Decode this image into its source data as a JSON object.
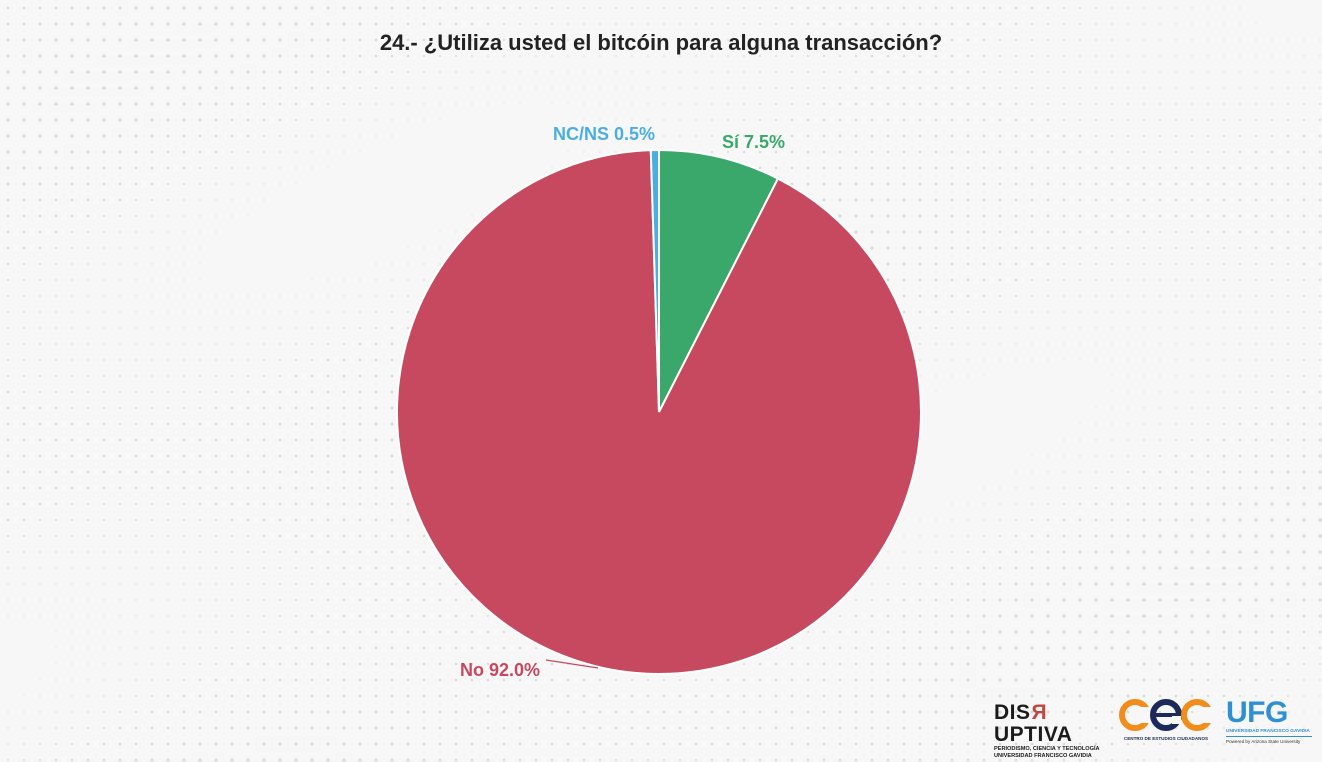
{
  "chart_data": {
    "type": "pie",
    "title": "24.- ¿Utiliza usted el bitcóin para alguna transacción?",
    "slices": [
      {
        "label": "Sí",
        "value": 7.5,
        "display": "Sí 7.5%",
        "color": "#3aa86b"
      },
      {
        "label": "No",
        "value": 92.0,
        "display": "No 92.0%",
        "color": "#c7495f"
      },
      {
        "label": "NC/NS",
        "value": 0.5,
        "display": "NC/NS 0.5%",
        "color": "#4aaee0"
      }
    ],
    "start_angle": "12 o'clock",
    "direction": "clockwise",
    "legend": "none"
  },
  "logos": {
    "disruptiva": {
      "name_a": "DIS",
      "name_flip": "R",
      "name_b": "UPTIVA",
      "sub1": "PERIODISMO, CIENCIA Y TECNOLOGÍA",
      "sub2": "UNIVERSIDAD FRANCISCO GAVIDIA"
    },
    "cec": {
      "sub": "CENTRO DE ESTUDIOS CIUDADANOS"
    },
    "ufg": {
      "name": "UFG",
      "sub1": "UNIVERSIDAD FRANCISCO GAVIDIA",
      "sub2": "Powered by Arizona State University"
    }
  }
}
